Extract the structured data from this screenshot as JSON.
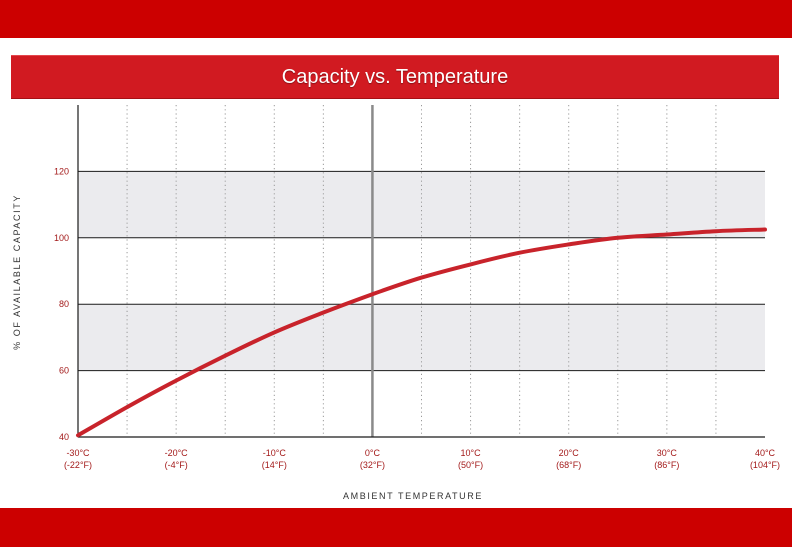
{
  "title": "Capacity vs. Temperature",
  "colors": {
    "band": "#cc0000",
    "title_bar": "#d11a21",
    "curve": "#c8232b",
    "shade": "#ebebee",
    "tick_text": "#a31a1a"
  },
  "chart_data": {
    "type": "line",
    "title": "Capacity vs. Temperature",
    "xlabel": "AMBIENT TEMPERATURE",
    "ylabel": "% OF AVAILABLE CAPACITY",
    "xlim": [
      -30,
      40
    ],
    "ylim": [
      40,
      140
    ],
    "x_ticks": [
      {
        "value": -30,
        "label": "-30°C",
        "sub": "(-22°F)"
      },
      {
        "value": -20,
        "label": "-20°C",
        "sub": "(-4°F)"
      },
      {
        "value": -10,
        "label": "-10°C",
        "sub": "(14°F)"
      },
      {
        "value": 0,
        "label": "0°C",
        "sub": "(32°F)"
      },
      {
        "value": 10,
        "label": "10°C",
        "sub": "(50°F)"
      },
      {
        "value": 20,
        "label": "20°C",
        "sub": "(68°F)"
      },
      {
        "value": 30,
        "label": "30°C",
        "sub": "(86°F)"
      },
      {
        "value": 40,
        "label": "40°C",
        "sub": "(104°F)"
      }
    ],
    "y_ticks": [
      {
        "value": 40,
        "label": "40"
      },
      {
        "value": 60,
        "label": "60"
      },
      {
        "value": 80,
        "label": "80"
      },
      {
        "value": 100,
        "label": "100"
      },
      {
        "value": 120,
        "label": "120"
      }
    ],
    "shaded_bands": [
      [
        60,
        80
      ],
      [
        100,
        120
      ]
    ],
    "grid": true,
    "series": [
      {
        "x": [
          -30,
          -25,
          -20,
          -15,
          -10,
          -5,
          0,
          5,
          10,
          15,
          20,
          25,
          30,
          35,
          40
        ],
        "y": [
          40.5,
          49,
          57,
          64.5,
          71.5,
          77.5,
          83,
          88,
          92,
          95.5,
          98,
          100,
          101,
          102,
          102.5
        ]
      }
    ]
  }
}
